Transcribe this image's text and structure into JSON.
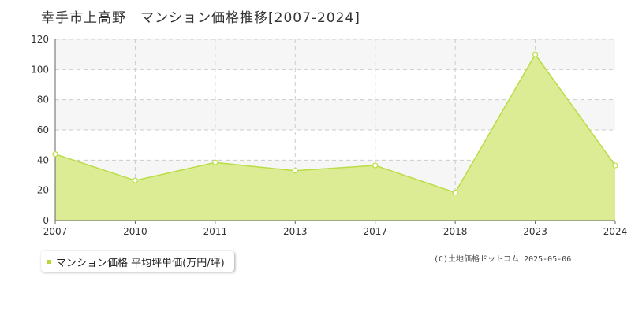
{
  "page": {
    "title": "幸手市上高野　マンション価格推移[2007-2024]",
    "legend_label": "マンション価格 平均坪単価(万円/坪)",
    "credit": "(C)土地価格ドットコム 2025-05-06"
  },
  "colors": {
    "area_fill": "#dbec95",
    "line": "#b9dd45",
    "marker_fill": "#ffffff",
    "legend_marker": "#b5d832",
    "grid": "#cccccc",
    "band": "#f6f6f6",
    "axis": "#666666",
    "text": "#333333"
  },
  "chart_data": {
    "type": "area",
    "categories": [
      "2007",
      "2010",
      "2011",
      "2013",
      "2017",
      "2018",
      "2023",
      "2024"
    ],
    "series": [
      {
        "name": "マンション価格 平均坪単価(万円/坪)",
        "values": [
          44,
          26.5,
          38.5,
          33,
          36.5,
          18.5,
          110,
          36.5
        ]
      }
    ],
    "yticks": [
      0,
      20,
      40,
      60,
      80,
      100,
      120
    ],
    "ylim": [
      0,
      120
    ],
    "grid": true,
    "legend_position": "bottom-left"
  }
}
